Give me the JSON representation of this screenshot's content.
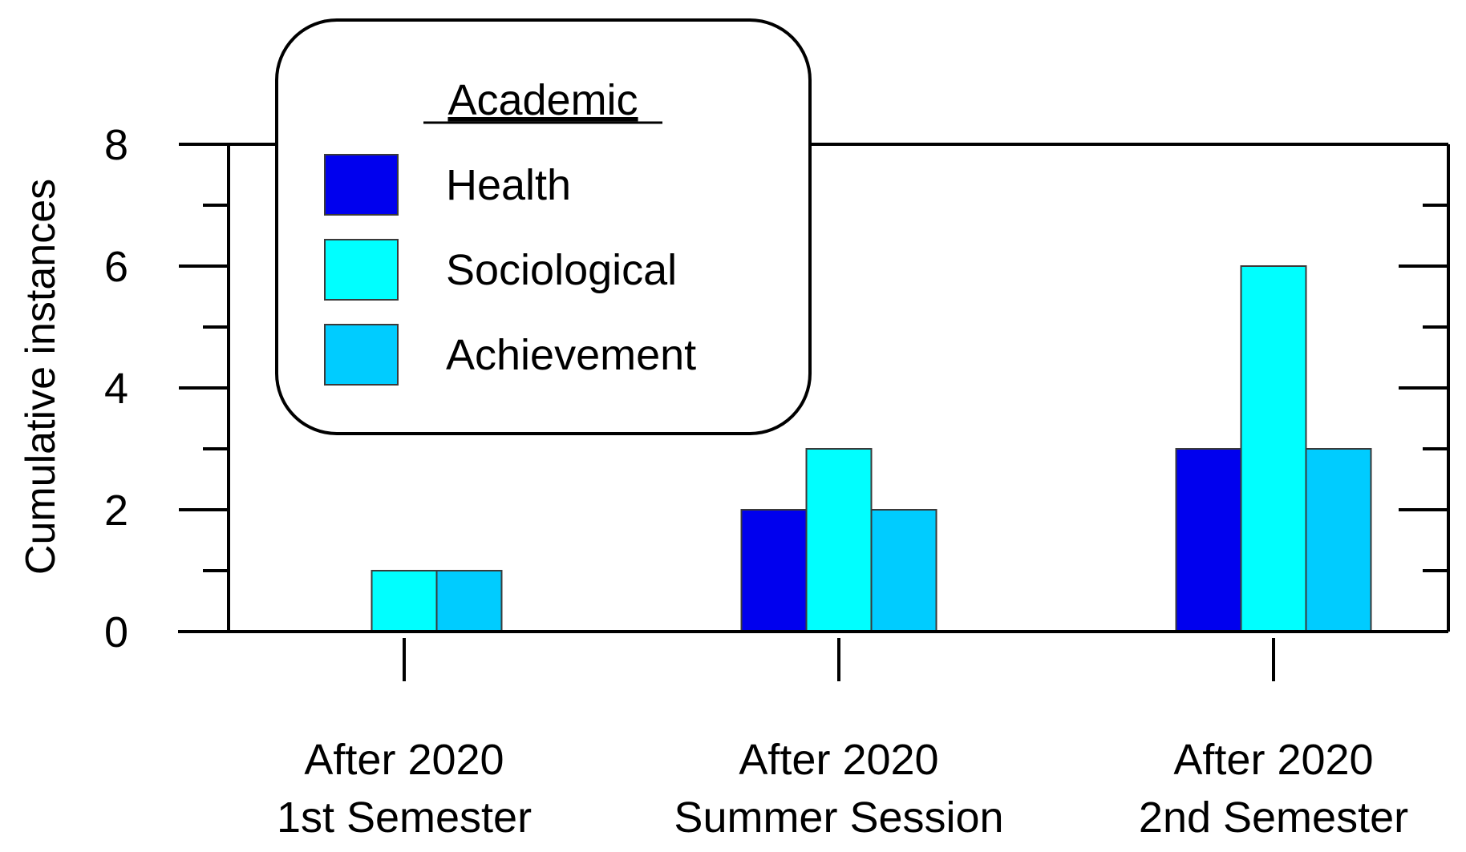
{
  "chart_data": {
    "type": "bar",
    "ylabel": "Cumulative instances",
    "ylim": [
      0,
      8
    ],
    "yticks": [
      "0",
      "2",
      "4",
      "6",
      "8"
    ],
    "categories": [
      [
        "After 2020",
        "1st Semester"
      ],
      [
        "After 2020",
        "Summer Session"
      ],
      [
        "After 2020",
        "2nd Semester"
      ]
    ],
    "legend": {
      "title": "Academic",
      "placement": "top-left"
    },
    "series": [
      {
        "name": "Health",
        "color": "#0000EE",
        "values": [
          0,
          2,
          3
        ]
      },
      {
        "name": "Sociological",
        "color": "#00FFFF",
        "values": [
          1,
          3,
          6
        ]
      },
      {
        "name": "Achievement",
        "color": "#00CCFF",
        "values": [
          1,
          2,
          3
        ]
      }
    ]
  }
}
